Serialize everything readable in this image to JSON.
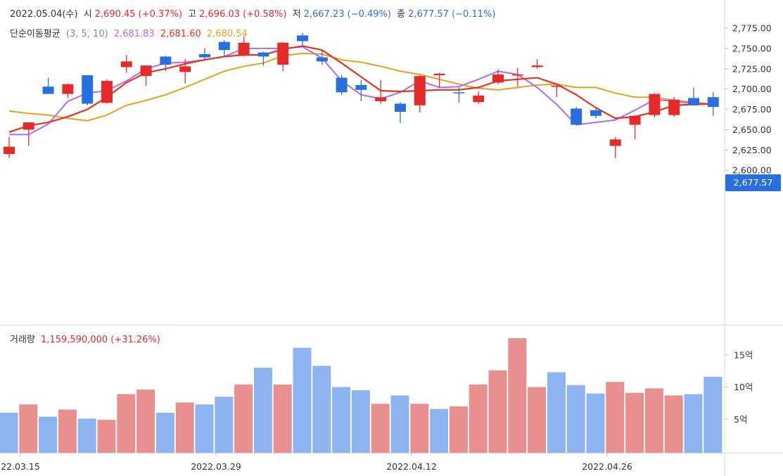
{
  "header": {
    "date": "2022.05.04(수)",
    "open_label": "시",
    "open": "2,690.45 (+0.37%)",
    "high_label": "고",
    "high": "2,696.03 (+0.58%)",
    "low_label": "저",
    "low": "2,667.23 (−0.49%)",
    "close_label": "종",
    "close": "2,677.57 (−0.11%)",
    "ma_label": "단순이동평균",
    "ma_periods": "(3, 5, 10)",
    "ma_a": "2,681.83",
    "ma_b": "2,681.60",
    "ma_c": "2,680.54"
  },
  "volume_header": {
    "label": "거래량",
    "value": "1,159,590,000 (+31.26%)"
  },
  "price_tag": "2,677.57",
  "colors": {
    "up": "#e52a2a",
    "down": "#2a6fe0",
    "vol_up": "#e89090",
    "vol_down": "#8db3f0",
    "ma5": "#b06bf0",
    "ma3": "#e5331f",
    "ma10": "#e8a21a"
  },
  "chart_data": {
    "type": "candlestick",
    "price_axis": {
      "ticks": [
        "2,775.00",
        "2,750.00",
        "2,725.00",
        "2,700.00",
        "2,675.00",
        "2,650.00",
        "2,625.00",
        "2,600.00"
      ],
      "tick_values": [
        2775,
        2750,
        2725,
        2700,
        2675,
        2650,
        2625,
        2600
      ]
    },
    "volume_axis": {
      "ticks": [
        "15억",
        "10억",
        "5억"
      ],
      "tick_values": [
        15,
        10,
        5
      ],
      "unit": "억"
    },
    "x_labels": [
      "22.03.15",
      "2022.03.29",
      "2022.04.12",
      "2022.04.26"
    ],
    "x_label_indices": [
      0,
      10,
      20,
      30
    ],
    "candles": [
      {
        "o": 2620,
        "h": 2641,
        "l": 2615,
        "c": 2629
      },
      {
        "o": 2650,
        "h": 2659,
        "l": 2630,
        "c": 2659
      },
      {
        "o": 2703,
        "h": 2714,
        "l": 2694,
        "c": 2694
      },
      {
        "o": 2694,
        "h": 2707,
        "l": 2689,
        "c": 2706
      },
      {
        "o": 2717,
        "h": 2717,
        "l": 2680,
        "c": 2682
      },
      {
        "o": 2683,
        "h": 2712,
        "l": 2682,
        "c": 2710
      },
      {
        "o": 2727,
        "h": 2742,
        "l": 2720,
        "c": 2734
      },
      {
        "o": 2716,
        "h": 2729,
        "l": 2704,
        "c": 2729
      },
      {
        "o": 2740,
        "h": 2741,
        "l": 2722,
        "c": 2730
      },
      {
        "o": 2721,
        "h": 2737,
        "l": 2707,
        "c": 2728
      },
      {
        "o": 2743,
        "h": 2750,
        "l": 2736,
        "c": 2739
      },
      {
        "o": 2758,
        "h": 2760,
        "l": 2740,
        "c": 2748
      },
      {
        "o": 2742,
        "h": 2765,
        "l": 2740,
        "c": 2757
      },
      {
        "o": 2745,
        "h": 2746,
        "l": 2729,
        "c": 2740
      },
      {
        "o": 2730,
        "h": 2758,
        "l": 2722,
        "c": 2757
      },
      {
        "o": 2766,
        "h": 2769,
        "l": 2752,
        "c": 2759
      },
      {
        "o": 2739,
        "h": 2748,
        "l": 2730,
        "c": 2734
      },
      {
        "o": 2714,
        "h": 2717,
        "l": 2693,
        "c": 2696
      },
      {
        "o": 2705,
        "h": 2711,
        "l": 2685,
        "c": 2699
      },
      {
        "o": 2685,
        "h": 2711,
        "l": 2682,
        "c": 2690
      },
      {
        "o": 2682,
        "h": 2684,
        "l": 2658,
        "c": 2672
      },
      {
        "o": 2680,
        "h": 2717,
        "l": 2671,
        "c": 2716
      },
      {
        "o": 2717,
        "h": 2720,
        "l": 2702,
        "c": 2719
      },
      {
        "o": 2696,
        "h": 2702,
        "l": 2683,
        "c": 2695
      },
      {
        "o": 2684,
        "h": 2697,
        "l": 2682,
        "c": 2692
      },
      {
        "o": 2708,
        "h": 2724,
        "l": 2706,
        "c": 2718
      },
      {
        "o": 2718,
        "h": 2726,
        "l": 2703,
        "c": 2718
      },
      {
        "o": 2727,
        "h": 2737,
        "l": 2725,
        "c": 2729
      },
      {
        "o": 2704,
        "h": 2707,
        "l": 2690,
        "c": 2704
      },
      {
        "o": 2676,
        "h": 2678,
        "l": 2656,
        "c": 2656
      },
      {
        "o": 2674,
        "h": 2676,
        "l": 2664,
        "c": 2667
      },
      {
        "o": 2630,
        "h": 2641,
        "l": 2615,
        "c": 2638
      },
      {
        "o": 2656,
        "h": 2668,
        "l": 2638,
        "c": 2667
      },
      {
        "o": 2668,
        "h": 2695,
        "l": 2665,
        "c": 2694
      },
      {
        "o": 2668,
        "h": 2690,
        "l": 2666,
        "c": 2687
      },
      {
        "o": 2689,
        "h": 2702,
        "l": 2680,
        "c": 2680
      },
      {
        "o": 2690,
        "h": 2696,
        "l": 2667,
        "c": 2678
      }
    ],
    "ma3": [
      2647,
      2655,
      2659,
      2666,
      2675,
      2690,
      2708,
      2720,
      2725,
      2731,
      2736,
      2740,
      2742,
      2742,
      2749,
      2753,
      2748,
      2732,
      2715,
      2698,
      2697,
      2698,
      2699,
      2699,
      2702,
      2710,
      2712,
      2714,
      2706,
      2693,
      2677,
      2664,
      2666,
      2672,
      2680,
      2681,
      2682
    ],
    "ma5": [
      2644,
      2644,
      2657,
      2685,
      2695,
      2698,
      2710,
      2725,
      2732,
      2733,
      2736,
      2740,
      2750,
      2750,
      2750,
      2752,
      2738,
      2710,
      2693,
      2688,
      2696,
      2710,
      2702,
      2703,
      2712,
      2722,
      2718,
      2702,
      2681,
      2656,
      2659,
      2662,
      2674,
      2687,
      2685,
      2682,
      2682
    ],
    "ma10": [
      2673,
      2670,
      2668,
      2664,
      2661,
      2668,
      2680,
      2686,
      2693,
      2702,
      2712,
      2722,
      2728,
      2732,
      2741,
      2744,
      2743,
      2736,
      2733,
      2728,
      2722,
      2718,
      2712,
      2706,
      2701,
      2699,
      2702,
      2705,
      2706,
      2702,
      2702,
      2695,
      2690,
      2690,
      2686,
      2684,
      2681
    ],
    "volume": [
      6.0,
      7.3,
      5.4,
      6.5,
      5.1,
      4.9,
      8.9,
      9.6,
      6.0,
      7.6,
      7.3,
      8.5,
      10.4,
      13.0,
      10.4,
      16.1,
      13.3,
      10.0,
      9.5,
      7.4,
      8.7,
      7.4,
      6.6,
      7.0,
      10.4,
      12.6,
      17.6,
      10.0,
      12.3,
      10.3,
      9.0,
      10.8,
      9.1,
      9.8,
      8.7,
      8.9,
      11.6
    ],
    "volume_up": [
      false,
      true,
      false,
      true,
      false,
      true,
      true,
      true,
      false,
      true,
      false,
      false,
      true,
      false,
      true,
      false,
      false,
      false,
      false,
      true,
      false,
      true,
      false,
      true,
      true,
      true,
      true,
      true,
      false,
      false,
      false,
      true,
      true,
      true,
      true,
      false,
      false
    ]
  }
}
